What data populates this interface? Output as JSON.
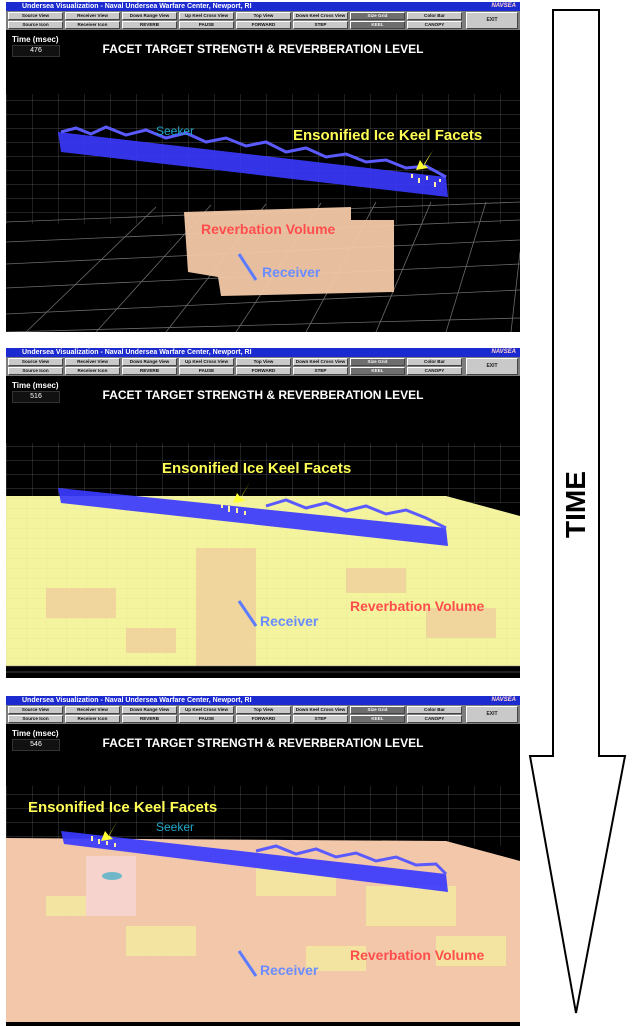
{
  "window_title": "Undersea Visualization - Naval Undersea Warfare Center, Newport, RI",
  "logo_text": "NAVSEA",
  "toolbar": {
    "row1": [
      "Source View",
      "Receiver View",
      "Down Range View",
      "Up Keel Cross View",
      "Top View",
      "Down Keel Cross View",
      "Size Grid",
      "Color Bar"
    ],
    "row2": [
      "Source Icon",
      "Receiver Icon",
      "REVERB",
      "PAUSE",
      "FORWARD",
      "STEP",
      "KEEL",
      "CANOPY"
    ],
    "exit_label": "EXIT"
  },
  "time_label": "Time (msec)",
  "panel_title": "FACET TARGET STRENGTH & REVERBERATION LEVEL",
  "panels": [
    {
      "time_value": "476",
      "facets_label": "Ensonified Ice Keel Facets",
      "reverb_label": "Reverbation Volume",
      "receiver_label": "Receiver",
      "ice_bar_label": "Seeker"
    },
    {
      "time_value": "516",
      "facets_label": "Ensonified Ice Keel Facets",
      "reverb_label": "Reverbation Volume",
      "receiver_label": "Receiver"
    },
    {
      "time_value": "546",
      "facets_label": "Ensonified Ice Keel Facets",
      "reverb_label": "Reverbation Volume",
      "receiver_label": "Receiver",
      "ice_bar_label": "Seeker"
    }
  ],
  "time_arrow_label": "TIME",
  "colors": {
    "title_bar": "#1c2bd0",
    "ice_keel": "#3a3aff",
    "reverb_volume": "#f3c9a8",
    "labels_yellow": "#ffff55",
    "labels_red": "#ff4d4d",
    "labels_blue": "#6a8cff"
  }
}
